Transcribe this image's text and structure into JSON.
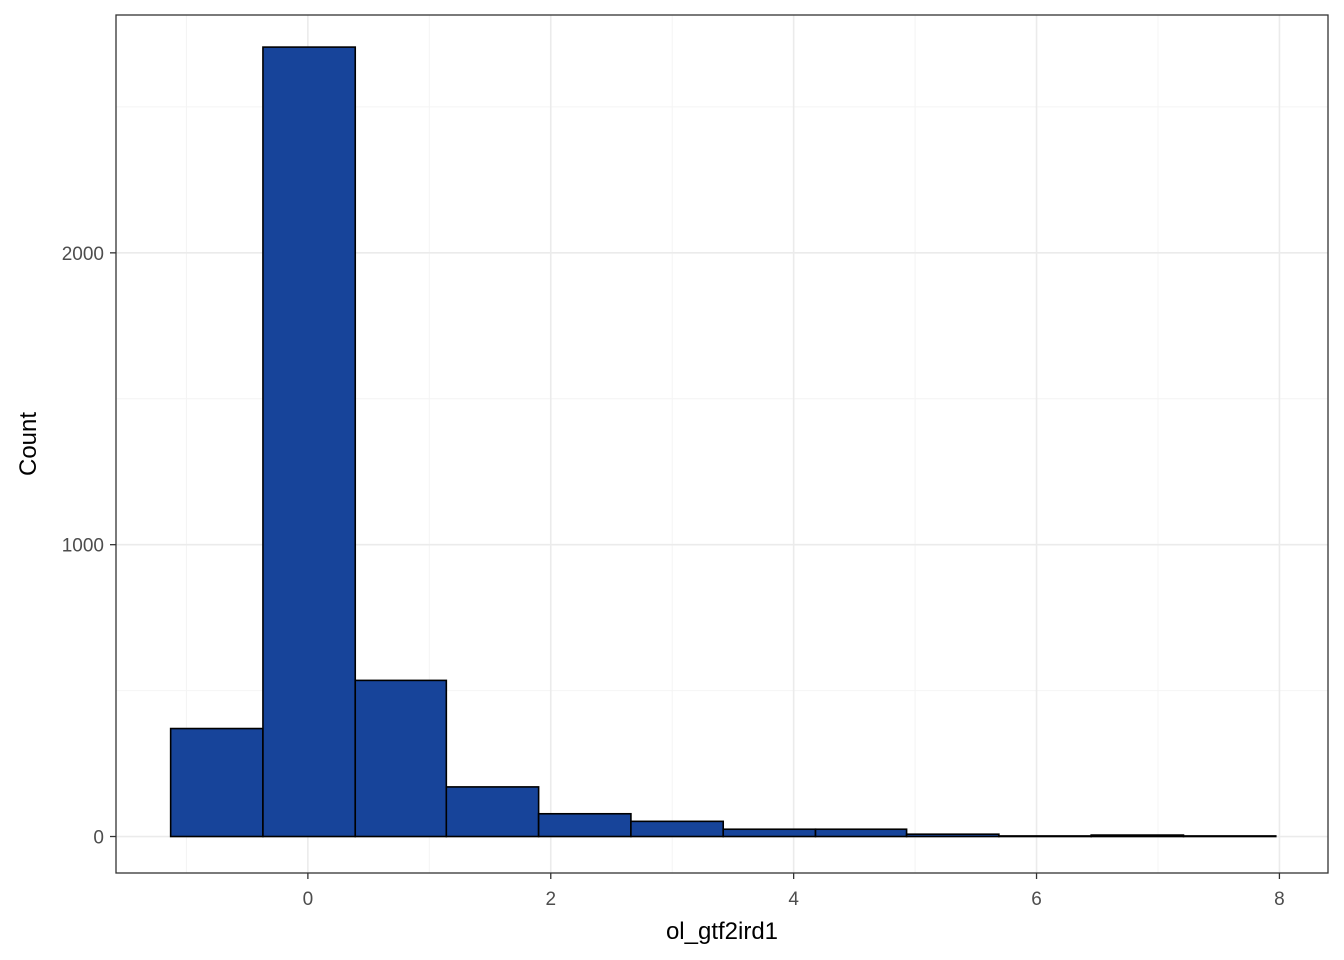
{
  "chart_data": {
    "type": "bar",
    "subtype": "histogram",
    "title": "",
    "xlabel": "ol_gtf2ird1",
    "ylabel": "Count",
    "xlim": [
      -1.58,
      8.4
    ],
    "ylim": [
      -125,
      2815
    ],
    "x_ticks": [
      0,
      2,
      4,
      6,
      8
    ],
    "y_ticks": [
      0,
      1000,
      2000
    ],
    "x_minor_ticks": [
      -1,
      1,
      3,
      5,
      7
    ],
    "y_minor_ticks": [
      500,
      1500,
      2500
    ],
    "grid": true,
    "legend": "none",
    "bins": [
      {
        "x0": -1.13,
        "x1": -0.37,
        "count": 370
      },
      {
        "x0": -0.37,
        "x1": 0.39,
        "count": 2705
      },
      {
        "x0": 0.39,
        "x1": 1.14,
        "count": 535
      },
      {
        "x0": 1.14,
        "x1": 1.9,
        "count": 170
      },
      {
        "x0": 1.9,
        "x1": 2.66,
        "count": 78
      },
      {
        "x0": 2.66,
        "x1": 3.42,
        "count": 52
      },
      {
        "x0": 3.42,
        "x1": 4.18,
        "count": 25
      },
      {
        "x0": 4.18,
        "x1": 4.93,
        "count": 25
      },
      {
        "x0": 4.93,
        "x1": 5.69,
        "count": 8
      },
      {
        "x0": 5.69,
        "x1": 6.45,
        "count": 2
      },
      {
        "x0": 6.45,
        "x1": 7.21,
        "count": 5
      },
      {
        "x0": 7.21,
        "x1": 7.97,
        "count": 2
      }
    ],
    "colors": {
      "bar_fill": "#17449A",
      "bar_stroke": "#000000",
      "grid_major": "#EBEBEB",
      "grid_minor": "#F4F4F4",
      "panel_border": "#333333"
    }
  }
}
